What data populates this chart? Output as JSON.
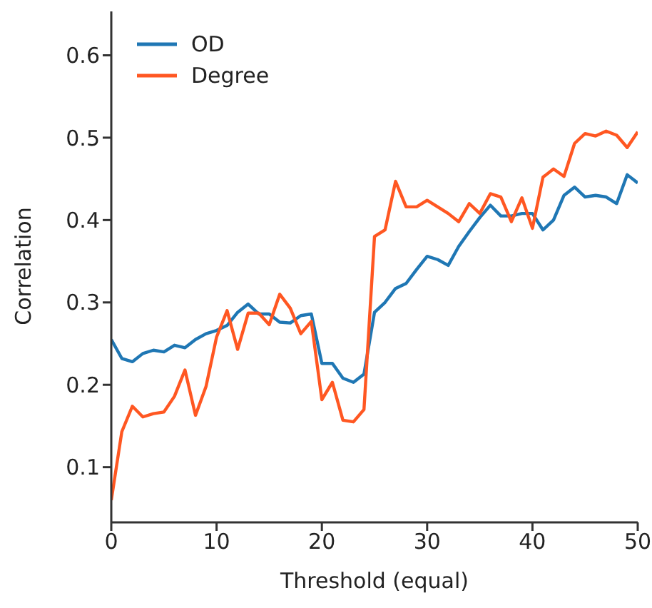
{
  "chart_data": {
    "type": "line",
    "xlabel": "Threshold (equal)",
    "ylabel": "Correlation",
    "x": [
      0,
      1,
      2,
      3,
      4,
      5,
      6,
      7,
      8,
      9,
      10,
      11,
      12,
      13,
      14,
      15,
      16,
      17,
      18,
      19,
      20,
      21,
      22,
      23,
      24,
      25,
      26,
      27,
      28,
      29,
      30,
      31,
      32,
      33,
      34,
      35,
      36,
      37,
      38,
      39,
      40,
      41,
      42,
      43,
      44,
      45,
      46,
      47,
      48,
      49,
      50
    ],
    "series": [
      {
        "name": "OD",
        "color": "#1f77b4",
        "values": [
          0.255,
          0.232,
          0.228,
          0.238,
          0.242,
          0.24,
          0.248,
          0.245,
          0.255,
          0.262,
          0.266,
          0.272,
          0.288,
          0.298,
          0.286,
          0.286,
          0.276,
          0.275,
          0.284,
          0.286,
          0.226,
          0.226,
          0.208,
          0.203,
          0.213,
          0.288,
          0.3,
          0.317,
          0.323,
          0.34,
          0.356,
          0.352,
          0.345,
          0.368,
          0.386,
          0.403,
          0.418,
          0.405,
          0.405,
          0.408,
          0.408,
          0.388,
          0.4,
          0.43,
          0.44,
          0.428,
          0.43,
          0.428,
          0.42,
          0.455,
          0.445
        ]
      },
      {
        "name": "Degree",
        "color": "#ff5722",
        "values": [
          0.06,
          0.143,
          0.174,
          0.161,
          0.165,
          0.167,
          0.186,
          0.218,
          0.163,
          0.198,
          0.258,
          0.29,
          0.243,
          0.287,
          0.287,
          0.273,
          0.31,
          0.293,
          0.262,
          0.277,
          0.182,
          0.203,
          0.157,
          0.155,
          0.17,
          0.38,
          0.388,
          0.447,
          0.416,
          0.416,
          0.424,
          0.416,
          0.408,
          0.398,
          0.42,
          0.408,
          0.432,
          0.428,
          0.398,
          0.427,
          0.39,
          0.452,
          0.462,
          0.453,
          0.493,
          0.505,
          0.502,
          0.508,
          0.503,
          0.488,
          0.507
        ]
      }
    ],
    "xlim": [
      0,
      50
    ],
    "xticks": [
      0,
      10,
      20,
      30,
      40,
      50
    ],
    "ylim": [
      0.033,
      0.655
    ],
    "yticks": [
      0.1,
      0.2,
      0.3,
      0.4,
      0.5,
      0.6
    ],
    "grid": false,
    "legend": "top left",
    "marker": "none",
    "line_style": "solid"
  }
}
